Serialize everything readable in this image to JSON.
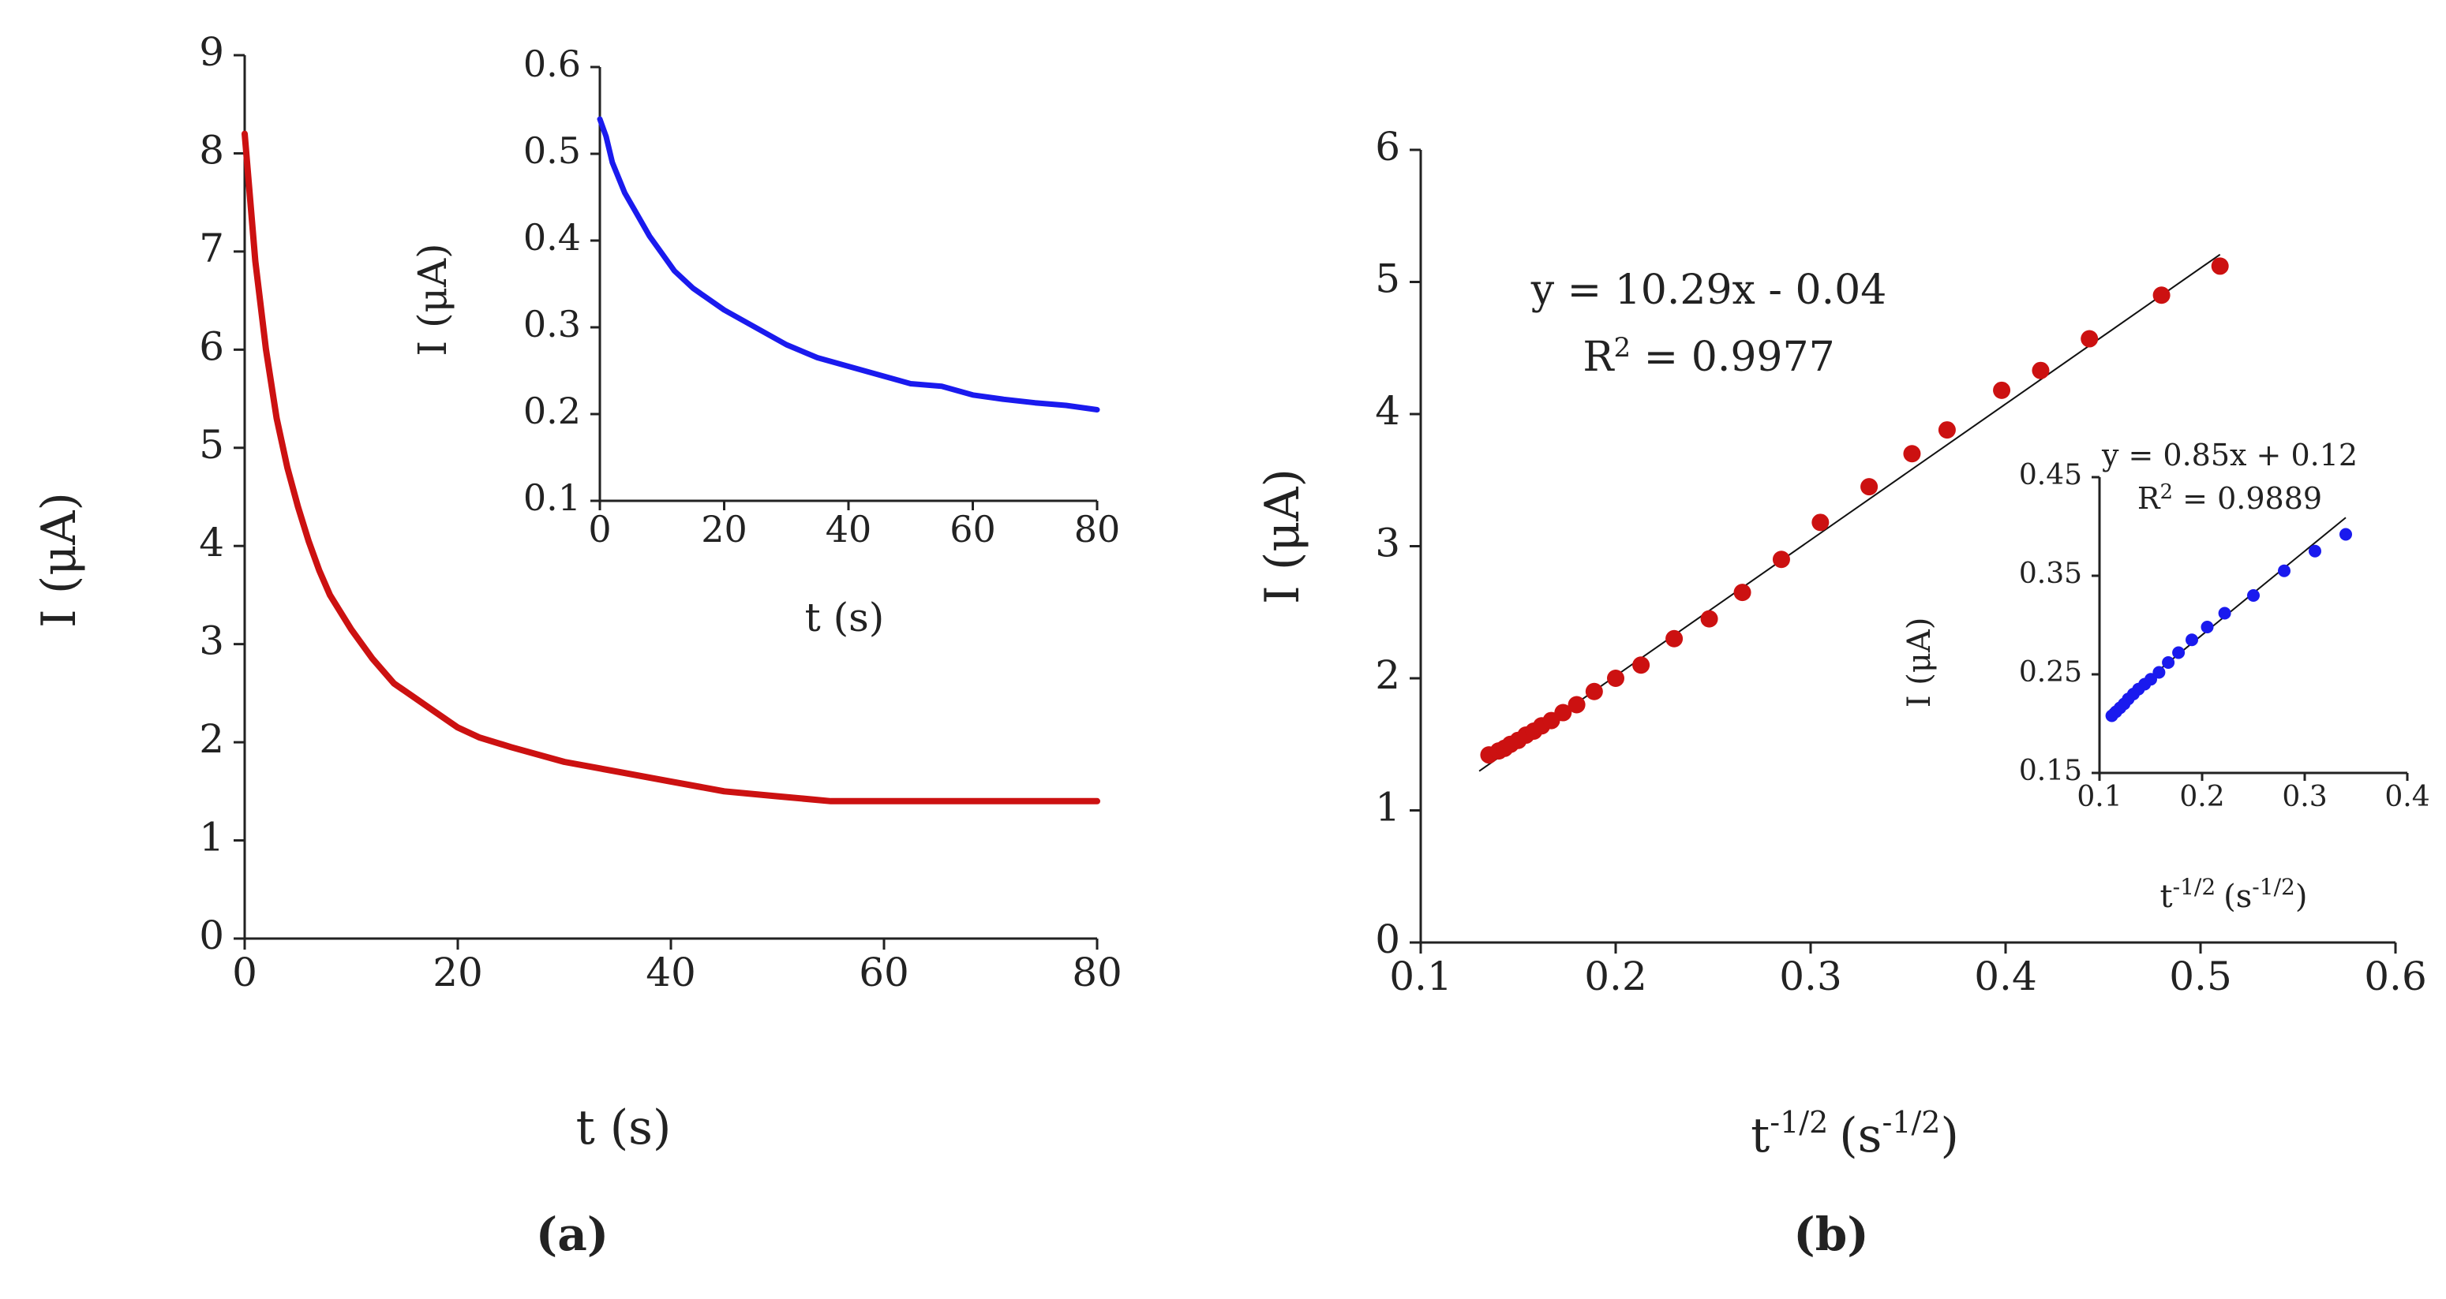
{
  "chart_data": [
    {
      "id": "a-main",
      "panel": "(a)",
      "type": "line",
      "color": "#cc1111",
      "xlabel": "t (s)",
      "ylabel": "I (μA)",
      "xlim": [
        0,
        80
      ],
      "ylim": [
        0,
        9
      ],
      "xticks": [
        0,
        20,
        40,
        60,
        80
      ],
      "yticks": [
        0,
        1,
        2,
        3,
        4,
        5,
        6,
        7,
        8,
        9
      ],
      "series": [
        {
          "name": "current",
          "x": [
            0,
            1,
            2,
            3,
            4,
            5,
            6,
            7,
            8,
            10,
            12,
            14,
            16,
            18,
            20,
            22,
            25,
            30,
            35,
            40,
            45,
            50,
            55,
            60,
            65,
            70,
            75,
            80
          ],
          "y": [
            8.2,
            6.9,
            6.0,
            5.3,
            4.8,
            4.4,
            4.05,
            3.75,
            3.5,
            3.15,
            2.85,
            2.6,
            2.45,
            2.3,
            2.15,
            2.05,
            1.95,
            1.8,
            1.7,
            1.6,
            1.5,
            1.45,
            1.4,
            1.4,
            1.4,
            1.4,
            1.4,
            1.4
          ]
        }
      ]
    },
    {
      "id": "a-inset",
      "panel": "(a) inset",
      "type": "line",
      "color": "#1a1aee",
      "xlabel": "t (s)",
      "ylabel": "I (μA)",
      "xlim": [
        0,
        80
      ],
      "ylim": [
        0.1,
        0.6
      ],
      "xticks": [
        0,
        20,
        40,
        60,
        80
      ],
      "yticks": [
        0.1,
        0.2,
        0.3,
        0.4,
        0.5,
        0.6
      ],
      "series": [
        {
          "name": "current",
          "x": [
            0,
            1,
            2,
            4,
            6,
            8,
            10,
            12,
            15,
            20,
            25,
            30,
            35,
            40,
            45,
            50,
            55,
            60,
            65,
            70,
            75,
            80
          ],
          "y": [
            0.54,
            0.52,
            0.49,
            0.455,
            0.43,
            0.405,
            0.385,
            0.365,
            0.345,
            0.32,
            0.3,
            0.28,
            0.265,
            0.255,
            0.245,
            0.235,
            0.232,
            0.222,
            0.217,
            0.213,
            0.21,
            0.205
          ]
        }
      ]
    },
    {
      "id": "b-main",
      "panel": "(b)",
      "type": "scatter",
      "color": "#cc1111",
      "xlabel": "t",
      "xlabel_sup": "-1/2",
      "xlabel_unit": "(s",
      "xlabel_unit_sup": "-1/2",
      "xlabel_close": ")",
      "ylabel": "I (μA)",
      "xlim": [
        0.1,
        0.6
      ],
      "ylim": [
        0,
        6
      ],
      "xticks": [
        0.1,
        0.2,
        0.3,
        0.4,
        0.5,
        0.6
      ],
      "yticks": [
        0,
        1,
        2,
        3,
        4,
        5,
        6
      ],
      "x": [
        0.135,
        0.14,
        0.143,
        0.146,
        0.15,
        0.154,
        0.158,
        0.162,
        0.167,
        0.173,
        0.18,
        0.189,
        0.2,
        0.213,
        0.23,
        0.248,
        0.265,
        0.285,
        0.305,
        0.33,
        0.352,
        0.37,
        0.398,
        0.418,
        0.443,
        0.48,
        0.51
      ],
      "y": [
        1.42,
        1.45,
        1.47,
        1.5,
        1.53,
        1.57,
        1.6,
        1.64,
        1.68,
        1.74,
        1.8,
        1.9,
        2.0,
        2.1,
        2.3,
        2.45,
        2.65,
        2.9,
        3.18,
        3.45,
        3.7,
        3.88,
        4.18,
        4.33,
        4.57,
        4.9,
        5.12
      ],
      "fit": {
        "slope": 10.29,
        "intercept": -0.04,
        "x_range": [
          0.13,
          0.51
        ]
      },
      "equation": "y = 10.29x - 0.04",
      "r2_label": "R",
      "r2_value": " = 0.9977"
    },
    {
      "id": "b-inset",
      "panel": "(b) inset",
      "type": "scatter",
      "color": "#1a1aee",
      "xlabel": "t",
      "xlabel_sup": "-1/2",
      "xlabel_unit": "(s",
      "xlabel_unit_sup": "-1/2",
      "xlabel_close": ")",
      "ylabel": "I (μA)",
      "xlim": [
        0.1,
        0.4
      ],
      "ylim": [
        0.15,
        0.45
      ],
      "xticks": [
        0.1,
        0.2,
        0.3,
        0.4
      ],
      "yticks": [
        0.15,
        0.25,
        0.35,
        0.45
      ],
      "x": [
        0.112,
        0.116,
        0.12,
        0.124,
        0.128,
        0.133,
        0.138,
        0.144,
        0.15,
        0.158,
        0.167,
        0.177,
        0.19,
        0.205,
        0.222,
        0.25,
        0.28,
        0.31,
        0.34
      ],
      "y": [
        0.208,
        0.212,
        0.216,
        0.22,
        0.225,
        0.23,
        0.235,
        0.24,
        0.245,
        0.252,
        0.262,
        0.272,
        0.285,
        0.298,
        0.312,
        0.33,
        0.355,
        0.375,
        0.392
      ],
      "fit": {
        "slope": 0.85,
        "intercept": 0.12,
        "x_range": [
          0.11,
          0.34
        ]
      },
      "equation": "y = 0.85x + 0.12",
      "r2_label": "R",
      "r2_value": " = 0.9889"
    }
  ],
  "superscript_two": "2",
  "panel_labels": {
    "a": "(a)",
    "b": "(b)"
  }
}
